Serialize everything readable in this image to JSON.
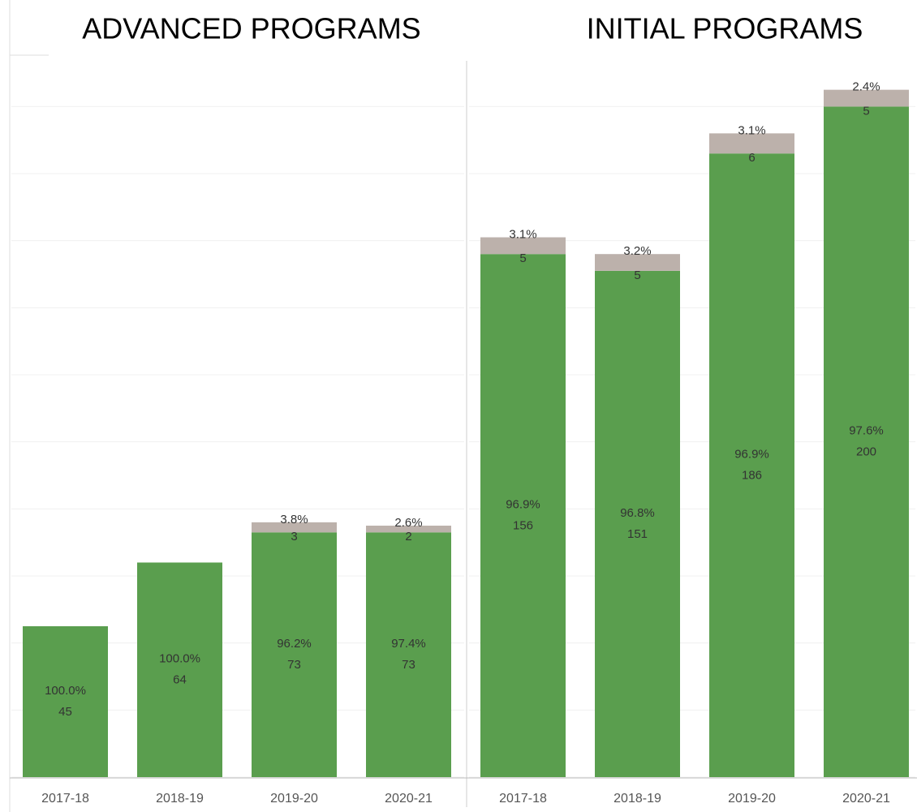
{
  "chart_data": [
    {
      "type": "bar",
      "title": "ADVANCED PROGRAMS",
      "categories": [
        "2017-18",
        "2018-19",
        "2019-20",
        "2020-21"
      ],
      "series": [
        {
          "color": "#5a9e4e",
          "values": [
            45,
            64,
            73,
            73
          ],
          "percents": [
            "100.0%",
            "100.0%",
            "96.2%",
            "97.4%"
          ]
        },
        {
          "color": "#bcb1ab",
          "values": [
            null,
            null,
            3,
            2
          ],
          "percents": [
            null,
            null,
            "3.8%",
            "2.6%"
          ]
        }
      ],
      "ylim": [
        0,
        210
      ],
      "yticks": [
        0,
        20,
        40,
        60,
        80,
        100,
        120,
        140,
        160,
        180,
        200
      ],
      "grid": true
    },
    {
      "type": "bar",
      "title": "INITIAL PROGRAMS",
      "categories": [
        "2017-18",
        "2018-19",
        "2019-20",
        "2020-21"
      ],
      "series": [
        {
          "color": "#5a9e4e",
          "values": [
            156,
            151,
            186,
            200
          ],
          "percents": [
            "96.9%",
            "96.8%",
            "96.9%",
            "97.6%"
          ]
        },
        {
          "color": "#bcb1ab",
          "values": [
            5,
            5,
            6,
            5
          ],
          "percents": [
            "3.1%",
            "3.2%",
            "3.1%",
            "2.4%"
          ]
        }
      ],
      "ylim": [
        0,
        210
      ],
      "yticks": [
        0,
        20,
        40,
        60,
        80,
        100,
        120,
        140,
        160,
        180,
        200
      ],
      "grid": true
    }
  ]
}
